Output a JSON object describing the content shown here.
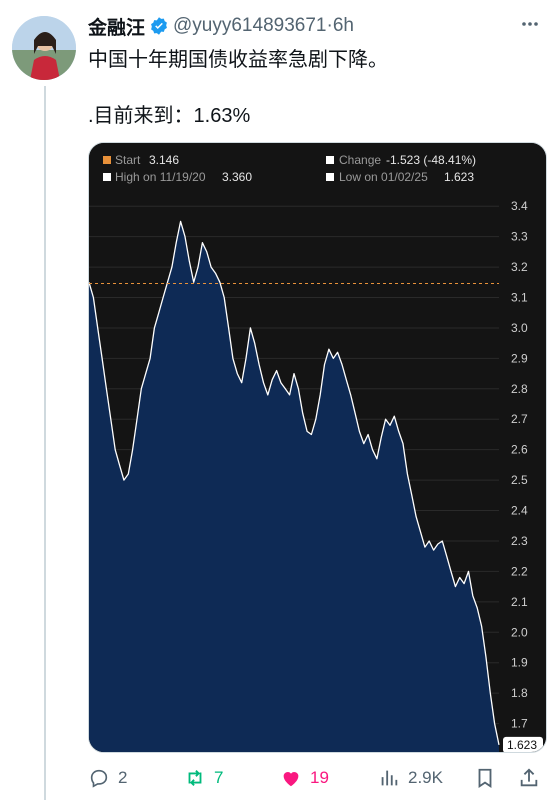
{
  "tweet": {
    "name": "金融汪",
    "handle": "@yuyy614893671",
    "dot": "·",
    "time": "6h",
    "text_line1": "中国十年期国债收益率急剧下降。",
    "text_line2": ".目前来到：1.63%"
  },
  "chart_data": {
    "type": "area",
    "legend": {
      "start_label": "Start",
      "start_value": "3.146",
      "change_label": "Change",
      "change_value": "-1.523 (-48.41%)",
      "high_label": "High on 11/19/20",
      "high_value": "3.360",
      "low_label": "Low on 01/02/25",
      "low_value": "1.623"
    },
    "y_ticks": [
      "3.4",
      "3.3",
      "3.2",
      "3.1",
      "3.0",
      "2.9",
      "2.8",
      "2.7",
      "2.6",
      "2.5",
      "2.4",
      "2.3",
      "2.2",
      "2.1",
      "2.0",
      "1.9",
      "1.8",
      "1.7"
    ],
    "ylim": [
      1.6,
      3.45
    ],
    "start_line": 3.146,
    "last_value_label": "1.623",
    "colors": {
      "line": "#ffffff",
      "fill": "#0e2a55",
      "start_line": "#e8913a",
      "background": "#141414"
    },
    "values": [
      3.15,
      3.1,
      3.0,
      2.9,
      2.8,
      2.7,
      2.6,
      2.55,
      2.5,
      2.52,
      2.6,
      2.7,
      2.8,
      2.85,
      2.9,
      3.0,
      3.05,
      3.1,
      3.15,
      3.2,
      3.28,
      3.35,
      3.3,
      3.22,
      3.15,
      3.2,
      3.28,
      3.25,
      3.2,
      3.18,
      3.15,
      3.1,
      3.0,
      2.9,
      2.85,
      2.82,
      2.9,
      3.0,
      2.95,
      2.88,
      2.82,
      2.78,
      2.83,
      2.86,
      2.82,
      2.8,
      2.78,
      2.85,
      2.8,
      2.72,
      2.66,
      2.65,
      2.7,
      2.78,
      2.88,
      2.93,
      2.9,
      2.92,
      2.88,
      2.83,
      2.78,
      2.72,
      2.66,
      2.62,
      2.65,
      2.6,
      2.57,
      2.64,
      2.7,
      2.68,
      2.71,
      2.66,
      2.62,
      2.52,
      2.45,
      2.38,
      2.33,
      2.28,
      2.3,
      2.27,
      2.29,
      2.3,
      2.25,
      2.2,
      2.15,
      2.18,
      2.16,
      2.2,
      2.12,
      2.08,
      2.02,
      1.92,
      1.8,
      1.7,
      1.63
    ]
  },
  "actions": {
    "reply_count": "2",
    "retweet_count": "7",
    "like_count": "19",
    "views_count": "2.9K"
  },
  "icons": [
    "verified-badge-icon",
    "more-icon",
    "reply-icon",
    "retweet-icon",
    "like-icon",
    "views-icon",
    "bookmark-icon",
    "share-icon"
  ]
}
